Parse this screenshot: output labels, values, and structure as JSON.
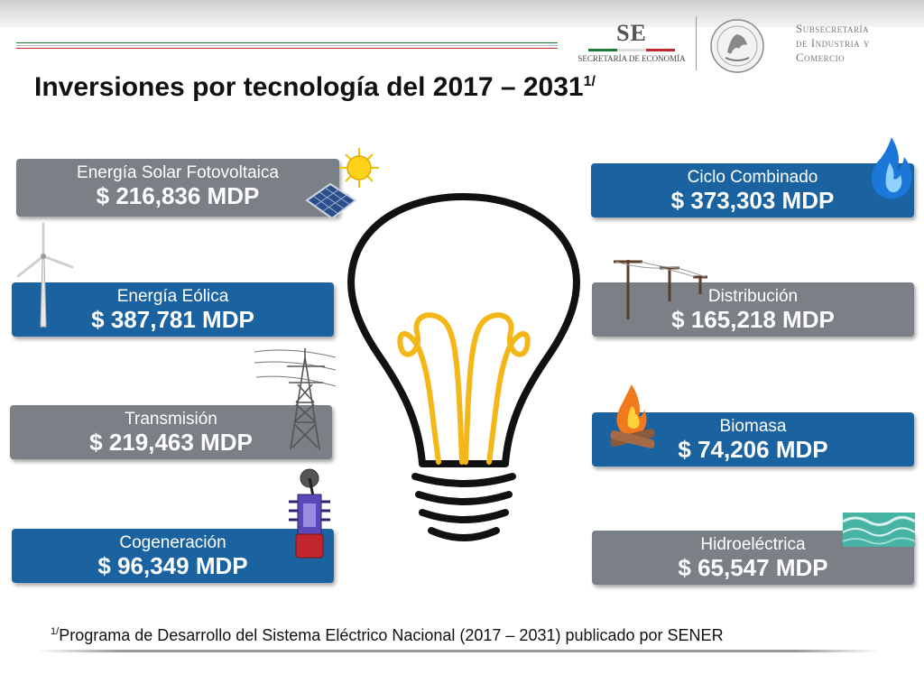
{
  "header": {
    "logo_text": "SE",
    "logo_subtitle": "SECRETARÍA DE ECONOMÍA",
    "subsecretaria_lines": [
      "Subsecretaría",
      "de Industria y",
      "Comercio"
    ],
    "title": "Inversiones por tecnología del 2017 – 2031",
    "title_sup": "1/"
  },
  "colors": {
    "card_grey": "#7b7f86",
    "card_blue": "#1b63a0",
    "flag_green": "#1f7a3a",
    "flag_red": "#c0262c",
    "bulb_filament": "#f3b719"
  },
  "technologies": [
    {
      "name": "Energía Solar Fotovoltaica",
      "value": "$  216,836 MDP",
      "style": "grey",
      "icon": "solar-panel-sun-icon"
    },
    {
      "name": "Ciclo Combinado",
      "value": "$ 373,303 MDP",
      "style": "blue",
      "icon": "gas-flame-icon"
    },
    {
      "name": "Energía Eólica",
      "value": "$ 387,781 MDP",
      "style": "blue",
      "icon": "wind-turbine-icon"
    },
    {
      "name": "Distribución",
      "value": "$ 165,218 MDP",
      "style": "grey",
      "icon": "utility-poles-icon"
    },
    {
      "name": "Transmisión",
      "value": "$ 219,463 MDP",
      "style": "grey",
      "icon": "transmission-tower-icon"
    },
    {
      "name": "Biomasa",
      "value": "$ 74,206 MDP",
      "style": "blue",
      "icon": "campfire-icon"
    },
    {
      "name": "Cogeneración",
      "value": "$ 96,349 MDP",
      "style": "blue",
      "icon": "cogeneration-engine-icon"
    },
    {
      "name": "Hidroeléctrica",
      "value": "$ 65,547 MDP",
      "style": "grey",
      "icon": "water-waves-icon"
    }
  ],
  "center_icon": "light-bulb-icon",
  "footnote": {
    "sup": "1/",
    "text": "Programa de Desarrollo del Sistema Eléctrico Nacional (2017 – 2031) publicado por SENER"
  }
}
